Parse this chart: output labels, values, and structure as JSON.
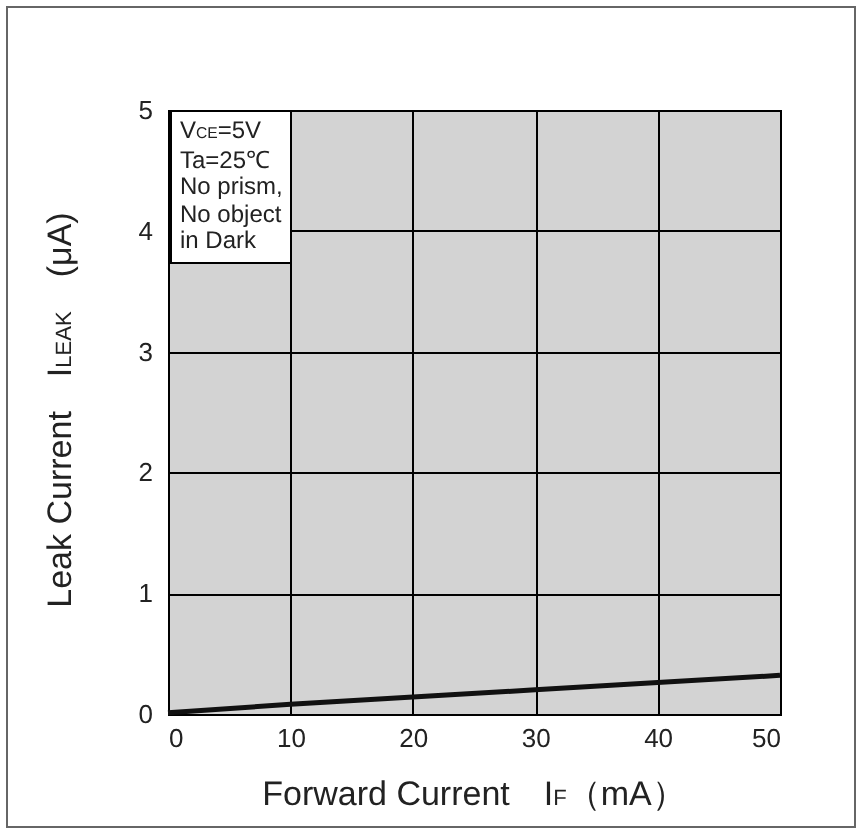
{
  "chart_data": {
    "type": "line",
    "xlabel": "Forward Current　I$_{F}$（mA）",
    "ylabel": "Leak Current　I$_{LEAK}$　(μA)",
    "annotations": [
      "V$_{CE}$=5V",
      "Ta=25℃",
      "No prism,",
      "No object",
      "in Dark"
    ],
    "x": [
      0,
      10,
      20,
      30,
      40,
      50
    ],
    "series": [
      {
        "color": "#111111",
        "values": [
          0.01,
          0.08,
          0.14,
          0.2,
          0.26,
          0.32
        ]
      }
    ],
    "xlim": [
      0,
      50
    ],
    "xticks": [
      0,
      10,
      20,
      30,
      40,
      50
    ],
    "ylim": [
      0,
      5
    ],
    "yticks": [
      0,
      1,
      2,
      3,
      4,
      5
    ],
    "grid": true,
    "marker": "none",
    "line_style": "solid"
  }
}
